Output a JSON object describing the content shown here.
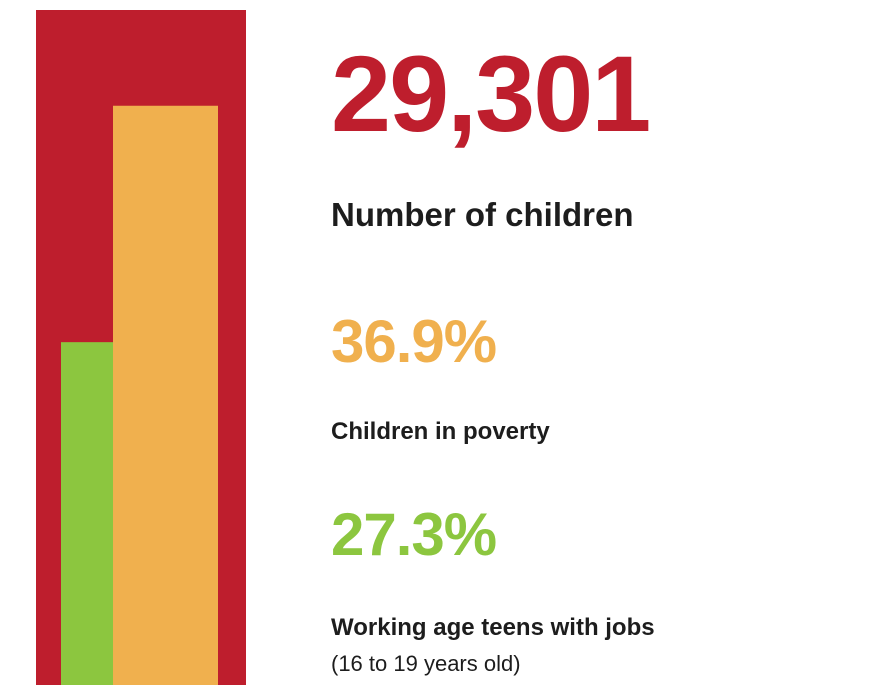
{
  "colors": {
    "children": "#be1e2d",
    "poverty": "#f0b04e",
    "jobs": "#8cc63f",
    "text": "#1d1d1d"
  },
  "chart_data": {
    "type": "bar",
    "stats": [
      {
        "key": "children",
        "value": "29,301",
        "label": "Number of children"
      },
      {
        "key": "poverty",
        "value": "36.9%",
        "label": "Children in poverty",
        "fraction": 0.369
      },
      {
        "key": "jobs",
        "value": "27.3%",
        "label": "Working age teens with jobs",
        "sublabel": "(16 to 19 years old)",
        "fraction": 0.273
      }
    ]
  }
}
